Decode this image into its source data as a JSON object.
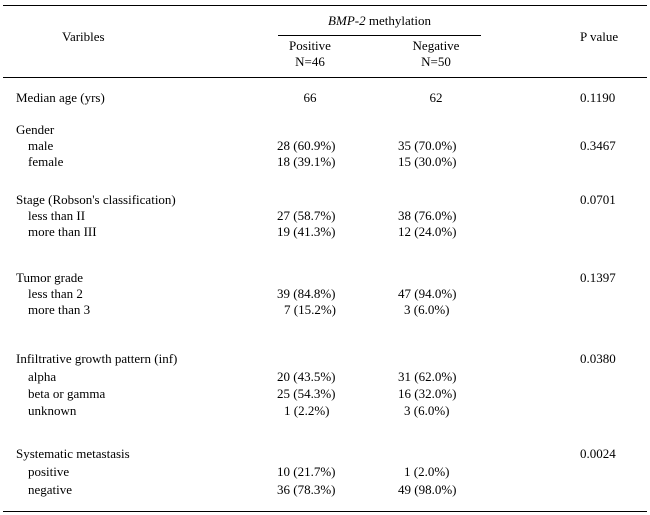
{
  "header": {
    "variables": "Varibles",
    "group_gene": "BMP-2",
    "group_suffix": " methylation",
    "positive": "Positive",
    "positive_n": "N=46",
    "negative": "Negative",
    "negative_n": "N=50",
    "pvalue": "P value"
  },
  "rows": [
    {
      "label": "Median age (yrs)",
      "pos": "66",
      "neg": "62",
      "p": "0.1190",
      "indent": false
    },
    {
      "label": "Gender",
      "pos": "",
      "neg": "",
      "p": "",
      "indent": false
    },
    {
      "label": "male",
      "pos": "28 (60.9%)",
      "neg": "35 (70.0%)",
      "p": "0.3467",
      "indent": true
    },
    {
      "label": "female",
      "pos": "18 (39.1%)",
      "neg": "15 (30.0%)",
      "p": "",
      "indent": true
    },
    {
      "label": "Stage (Robson's classification)",
      "pos": "",
      "neg": "",
      "p": "0.0701",
      "indent": false
    },
    {
      "label": "less than II",
      "pos": "27 (58.7%)",
      "neg": "38 (76.0%)",
      "p": "",
      "indent": true
    },
    {
      "label": "more than III",
      "pos": "19 (41.3%)",
      "neg": "12 (24.0%)",
      "p": "",
      "indent": true
    },
    {
      "label": "Tumor grade",
      "pos": "",
      "neg": "",
      "p": "0.1397",
      "indent": false
    },
    {
      "label": "less than 2",
      "pos": "39 (84.8%)",
      "neg": "47 (94.0%)",
      "p": "",
      "indent": true
    },
    {
      "label": "more than 3",
      "pos": "7 (15.2%)",
      "neg": "3 (6.0%)",
      "p": "",
      "indent": true
    },
    {
      "label": "Infiltrative  growth pattern (inf)",
      "pos": "",
      "neg": "",
      "p": "0.0380",
      "indent": false
    },
    {
      "label": "alpha",
      "pos": "20 (43.5%)",
      "neg": "31 (62.0%)",
      "p": "",
      "indent": true
    },
    {
      "label": "beta or gamma",
      "pos": "25 (54.3%)",
      "neg": "16 (32.0%)",
      "p": "",
      "indent": true
    },
    {
      "label": "unknown",
      "pos": "1 (2.2%)",
      "neg": "3 (6.0%)",
      "p": "",
      "indent": true
    },
    {
      "label": "Systematic metastasis",
      "pos": "",
      "neg": "",
      "p": "0.0024",
      "indent": false
    },
    {
      "label": "positive",
      "pos": "10 (21.7%)",
      "neg": "1 (2.0%)",
      "p": "",
      "indent": true
    },
    {
      "label": "negative",
      "pos": "36 (78.3%)",
      "neg": "49 (98.0%)",
      "p": "",
      "indent": true
    }
  ]
}
